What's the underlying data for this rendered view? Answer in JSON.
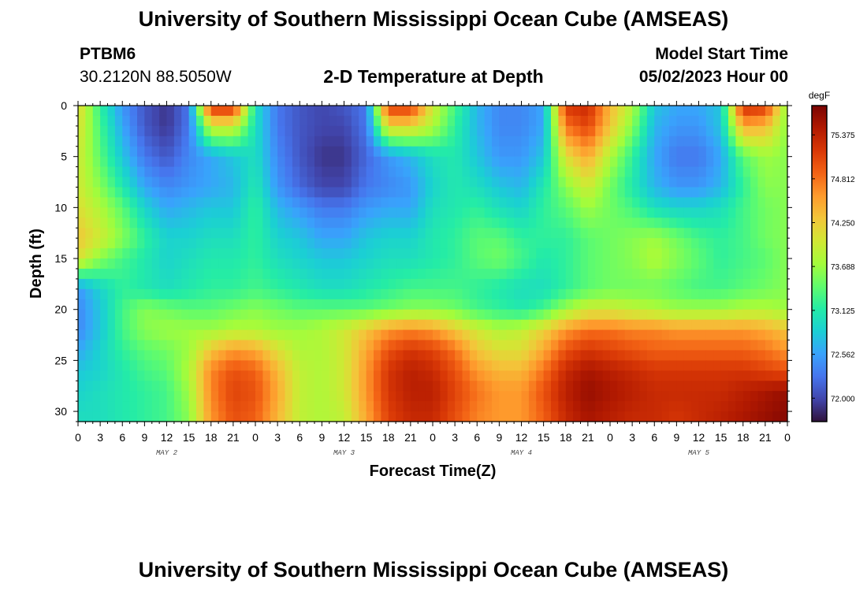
{
  "header": {
    "title": "University of Southern Mississippi Ocean Cube (AMSEAS)",
    "station": "PTBM6",
    "coords": "30.2120N  88.5050W",
    "subtitle": "2-D Temperature at Depth",
    "model_start_label": "Model Start Time",
    "model_start_value": "05/02/2023 Hour 00"
  },
  "footer": {
    "title": "University of Southern Mississippi Ocean Cube (AMSEAS)"
  },
  "chart_data": {
    "type": "heatmap",
    "title": "2-D Temperature at Depth",
    "xlabel": "Forecast Time(Z)",
    "ylabel": "Depth (ft)",
    "x_ticks": [
      "0",
      "3",
      "6",
      "9",
      "12",
      "15",
      "18",
      "21",
      "0",
      "3",
      "6",
      "9",
      "12",
      "15",
      "18",
      "21",
      "0",
      "3",
      "6",
      "9",
      "12",
      "15",
      "18",
      "21",
      "0",
      "3",
      "6",
      "9",
      "12",
      "15",
      "18",
      "21",
      "0"
    ],
    "day_labels": [
      {
        "label": "MAY 2",
        "hour": 12
      },
      {
        "label": "MAY 3",
        "hour": 36
      },
      {
        "label": "MAY 4",
        "hour": 60
      },
      {
        "label": "MAY 5",
        "hour": 84
      }
    ],
    "x_range_hours": [
      0,
      96
    ],
    "y_ticks": [
      "0",
      "5",
      "10",
      "15",
      "20",
      "25",
      "30"
    ],
    "y_range_ft": [
      0,
      31
    ],
    "colorbar": {
      "unit": "degF",
      "range": [
        71.7,
        75.75
      ],
      "ticks": [
        "75.375",
        "74.812",
        "74.250",
        "73.688",
        "73.125",
        "72.562",
        "72.000"
      ],
      "colors": [
        "#30123b",
        "#4145ab",
        "#4675ed",
        "#39a2fc",
        "#1bcfd4",
        "#24eca6",
        "#61fc6c",
        "#a4fc3b",
        "#d1e834",
        "#f3c63a",
        "#fe9b2d",
        "#f36315",
        "#d93806",
        "#b11901",
        "#7a0402"
      ]
    },
    "field_description_hours": [
      0,
      3,
      6,
      9,
      12,
      15,
      18,
      21,
      24,
      27,
      30,
      33,
      36,
      39,
      42,
      45,
      48,
      51,
      54,
      57,
      60,
      63,
      66,
      69,
      72,
      75,
      78,
      81,
      84,
      87,
      90,
      93,
      96
    ],
    "field_description_depths_ft": [
      0,
      2,
      5,
      8,
      10,
      13,
      15,
      18,
      20,
      22,
      24,
      26,
      28,
      31
    ],
    "values_degF": [
      [
        74.2,
        73.2,
        72.5,
        72.1,
        71.9,
        72.3,
        75.3,
        75.3,
        73.0,
        72.3,
        72.1,
        72.0,
        72.1,
        72.3,
        75.2,
        75.2,
        74.0,
        73.3,
        72.7,
        72.4,
        72.4,
        72.6,
        75.2,
        75.3,
        74.4,
        73.8,
        72.8,
        72.6,
        72.6,
        72.8,
        75.3,
        75.2,
        73.6
      ],
      [
        74.1,
        73.3,
        72.6,
        72.1,
        71.9,
        72.3,
        74.0,
        74.0,
        73.0,
        72.3,
        72.1,
        72.0,
        72.0,
        72.3,
        74.2,
        74.2,
        73.8,
        73.2,
        72.7,
        72.4,
        72.4,
        72.6,
        74.8,
        75.1,
        74.3,
        73.6,
        72.7,
        72.5,
        72.5,
        72.8,
        74.5,
        74.4,
        73.6
      ],
      [
        74.0,
        73.4,
        72.8,
        72.3,
        72.1,
        72.4,
        72.6,
        72.8,
        73.0,
        72.4,
        72.1,
        71.9,
        71.9,
        72.2,
        72.5,
        72.7,
        73.0,
        73.1,
        72.8,
        72.5,
        72.5,
        72.8,
        74.1,
        74.5,
        73.8,
        73.2,
        72.6,
        72.3,
        72.3,
        72.6,
        73.4,
        73.7,
        73.6
      ],
      [
        74.0,
        73.6,
        73.1,
        72.6,
        72.4,
        72.5,
        72.6,
        72.7,
        73.1,
        72.5,
        72.2,
        72.0,
        72.0,
        72.3,
        72.4,
        72.5,
        72.9,
        73.1,
        73.0,
        72.8,
        72.7,
        73.1,
        73.6,
        74.0,
        73.5,
        73.1,
        72.7,
        72.5,
        72.5,
        72.7,
        73.2,
        73.6,
        73.6
      ],
      [
        74.1,
        73.8,
        73.4,
        72.9,
        72.6,
        72.7,
        72.8,
        72.8,
        73.2,
        72.7,
        72.5,
        72.3,
        72.3,
        72.5,
        72.6,
        72.6,
        73.0,
        73.1,
        73.2,
        73.0,
        72.9,
        73.2,
        73.4,
        73.7,
        73.5,
        73.3,
        73.0,
        72.9,
        72.9,
        73.0,
        73.3,
        73.5,
        73.6
      ],
      [
        74.3,
        74.0,
        73.6,
        73.2,
        72.9,
        72.9,
        73.0,
        73.0,
        73.2,
        72.9,
        72.8,
        72.6,
        72.6,
        72.8,
        72.9,
        72.9,
        73.1,
        73.2,
        73.4,
        73.4,
        73.2,
        73.2,
        73.2,
        73.4,
        73.5,
        73.6,
        73.7,
        73.5,
        73.3,
        73.2,
        73.3,
        73.5,
        73.6
      ],
      [
        74.1,
        73.6,
        73.3,
        73.1,
        72.9,
        73.0,
        73.1,
        73.1,
        73.2,
        73.0,
        72.9,
        72.8,
        72.8,
        72.9,
        73.0,
        73.0,
        73.1,
        73.2,
        73.4,
        73.5,
        73.3,
        73.1,
        73.2,
        73.4,
        73.5,
        73.6,
        73.8,
        73.6,
        73.4,
        73.2,
        73.3,
        73.4,
        73.6
      ],
      [
        72.5,
        72.9,
        73.2,
        73.1,
        73.0,
        73.1,
        73.2,
        73.2,
        73.3,
        73.2,
        73.1,
        73.0,
        73.0,
        73.1,
        73.2,
        73.3,
        73.3,
        73.3,
        73.2,
        73.1,
        73.0,
        73.0,
        73.2,
        73.4,
        73.5,
        73.5,
        73.5,
        73.4,
        73.3,
        73.3,
        73.4,
        73.5,
        73.6
      ],
      [
        72.4,
        72.8,
        73.3,
        73.6,
        73.5,
        73.4,
        73.4,
        73.5,
        73.6,
        73.5,
        73.4,
        73.4,
        73.4,
        73.4,
        73.5,
        73.6,
        73.6,
        73.5,
        73.3,
        73.2,
        73.1,
        73.3,
        73.7,
        74.0,
        74.0,
        73.9,
        73.8,
        73.7,
        73.7,
        73.7,
        73.8,
        73.8,
        73.7
      ],
      [
        72.4,
        72.8,
        73.3,
        73.6,
        73.7,
        73.7,
        73.7,
        73.8,
        73.8,
        73.7,
        73.7,
        73.8,
        74.0,
        74.3,
        74.6,
        74.7,
        74.6,
        74.3,
        74.0,
        73.8,
        73.9,
        74.2,
        74.6,
        74.8,
        74.8,
        74.7,
        74.7,
        74.6,
        74.6,
        74.6,
        74.6,
        74.5,
        74.3
      ],
      [
        72.6,
        72.9,
        73.2,
        73.4,
        73.5,
        73.7,
        74.3,
        74.6,
        74.5,
        74.1,
        73.8,
        73.8,
        74.0,
        74.5,
        75.0,
        75.2,
        75.1,
        74.8,
        74.3,
        74.1,
        74.1,
        74.5,
        75.0,
        75.2,
        75.1,
        75.0,
        74.9,
        74.9,
        74.9,
        74.9,
        74.9,
        74.8,
        74.6
      ],
      [
        72.8,
        72.9,
        73.1,
        73.3,
        73.4,
        73.8,
        74.7,
        75.0,
        74.9,
        74.4,
        73.9,
        73.8,
        74.0,
        74.6,
        75.2,
        75.4,
        75.3,
        75.0,
        74.6,
        74.4,
        74.4,
        74.8,
        75.3,
        75.5,
        75.4,
        75.3,
        75.2,
        75.2,
        75.2,
        75.2,
        75.2,
        75.1,
        75.0
      ],
      [
        72.9,
        73.0,
        73.1,
        73.2,
        73.3,
        73.7,
        74.7,
        75.1,
        75.0,
        74.5,
        73.9,
        73.8,
        74.0,
        74.6,
        75.2,
        75.4,
        75.4,
        75.1,
        74.8,
        74.6,
        74.6,
        75.0,
        75.4,
        75.6,
        75.5,
        75.4,
        75.3,
        75.3,
        75.3,
        75.3,
        75.4,
        75.5,
        75.6
      ],
      [
        73.0,
        73.0,
        73.1,
        73.2,
        73.3,
        73.6,
        74.6,
        75.0,
        74.9,
        74.4,
        73.9,
        73.8,
        73.9,
        74.5,
        75.1,
        75.3,
        75.3,
        75.0,
        74.7,
        74.6,
        74.6,
        74.9,
        75.3,
        75.5,
        75.4,
        75.3,
        75.3,
        75.2,
        75.3,
        75.4,
        75.5,
        75.6,
        75.7
      ]
    ]
  }
}
